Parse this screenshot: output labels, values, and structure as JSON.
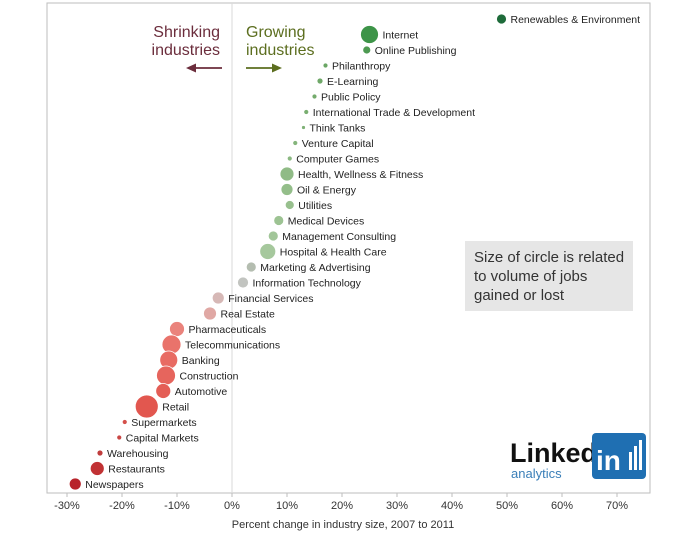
{
  "chart_data": {
    "type": "scatter",
    "xlabel": "Percent change in industry size, 2007 to 2011",
    "xlim": [
      -32,
      73
    ],
    "x_ticks": [
      -30,
      -20,
      -10,
      0,
      10,
      20,
      30,
      40,
      50,
      60,
      70
    ],
    "x_tick_labels": [
      "-30%",
      "-20%",
      "-10%",
      "0%",
      "10%",
      "20%",
      "30%",
      "40%",
      "50%",
      "60%",
      "70%"
    ],
    "headers": {
      "shrinking": [
        "Shrinking",
        "industries"
      ],
      "growing": [
        "Growing",
        "industries"
      ]
    },
    "annotation": [
      "Size of circle is related",
      "to volume of jobs",
      "gained or lost"
    ],
    "logo": {
      "main": "Linked",
      "in": "in",
      "sub": "analytics"
    },
    "points": [
      {
        "label": "Renewables & Environment",
        "x": 49,
        "r": 5,
        "color": "#1e6b3a"
      },
      {
        "label": "Internet",
        "x": 25,
        "r": 9,
        "color": "#3d9448"
      },
      {
        "label": "Online Publishing",
        "x": 24.5,
        "r": 4,
        "color": "#4e9a52"
      },
      {
        "label": "Philanthropy",
        "x": 17,
        "r": 2.5,
        "color": "#6aa664"
      },
      {
        "label": "E-Learning",
        "x": 16,
        "r": 3,
        "color": "#6fa868"
      },
      {
        "label": "Public Policy",
        "x": 15,
        "r": 2.5,
        "color": "#74ab6c"
      },
      {
        "label": "International Trade & Development",
        "x": 13.5,
        "r": 2.5,
        "color": "#79ae70"
      },
      {
        "label": "Think Tanks",
        "x": 13,
        "r": 2,
        "color": "#7fb176"
      },
      {
        "label": "Venture Capital",
        "x": 11.5,
        "r": 2.5,
        "color": "#85b57c"
      },
      {
        "label": "Computer Games",
        "x": 10.5,
        "r": 2.5,
        "color": "#8ab881"
      },
      {
        "label": "Health, Wellness & Fitness",
        "x": 10,
        "r": 7,
        "color": "#90bb86"
      },
      {
        "label": "Oil & Energy",
        "x": 10,
        "r": 6,
        "color": "#94be8a"
      },
      {
        "label": "Utilities",
        "x": 10.5,
        "r": 4.5,
        "color": "#98c08e"
      },
      {
        "label": "Medical Devices",
        "x": 8.5,
        "r": 5,
        "color": "#9dc393"
      },
      {
        "label": "Management Consulting",
        "x": 7.5,
        "r": 5,
        "color": "#a2c699"
      },
      {
        "label": "Hospital & Health Care",
        "x": 6.5,
        "r": 8,
        "color": "#a6c89d"
      },
      {
        "label": "Marketing & Advertising",
        "x": 3.5,
        "r": 5,
        "color": "#b4bdb0"
      },
      {
        "label": "Information Technology",
        "x": 2,
        "r": 5.5,
        "color": "#c2c4c0"
      },
      {
        "label": "Financial Services",
        "x": -2.5,
        "r": 6,
        "color": "#d6b8b6"
      },
      {
        "label": "Real Estate",
        "x": -4,
        "r": 6.5,
        "color": "#e0a8a4"
      },
      {
        "label": "Pharmaceuticals",
        "x": -10,
        "r": 7.5,
        "color": "#ea837c"
      },
      {
        "label": "Telecommunications",
        "x": -11,
        "r": 9.5,
        "color": "#e9736b"
      },
      {
        "label": "Banking",
        "x": -11.5,
        "r": 9,
        "color": "#e86b63"
      },
      {
        "label": "Construction",
        "x": -12,
        "r": 9.5,
        "color": "#e6655d"
      },
      {
        "label": "Automotive",
        "x": -12.5,
        "r": 7.5,
        "color": "#e45e56"
      },
      {
        "label": "Retail",
        "x": -15.5,
        "r": 11.5,
        "color": "#e2574f"
      },
      {
        "label": "Supermarkets",
        "x": -19.5,
        "r": 2.5,
        "color": "#d4504a"
      },
      {
        "label": "Capital Markets",
        "x": -20.5,
        "r": 2.5,
        "color": "#c94644"
      },
      {
        "label": "Warehousing",
        "x": -24,
        "r": 3,
        "color": "#c03c3c"
      },
      {
        "label": "Restaurants",
        "x": -24.5,
        "r": 7,
        "color": "#c13234"
      },
      {
        "label": "Newspapers",
        "x": -28.5,
        "r": 6,
        "color": "#b8242b"
      }
    ]
  }
}
